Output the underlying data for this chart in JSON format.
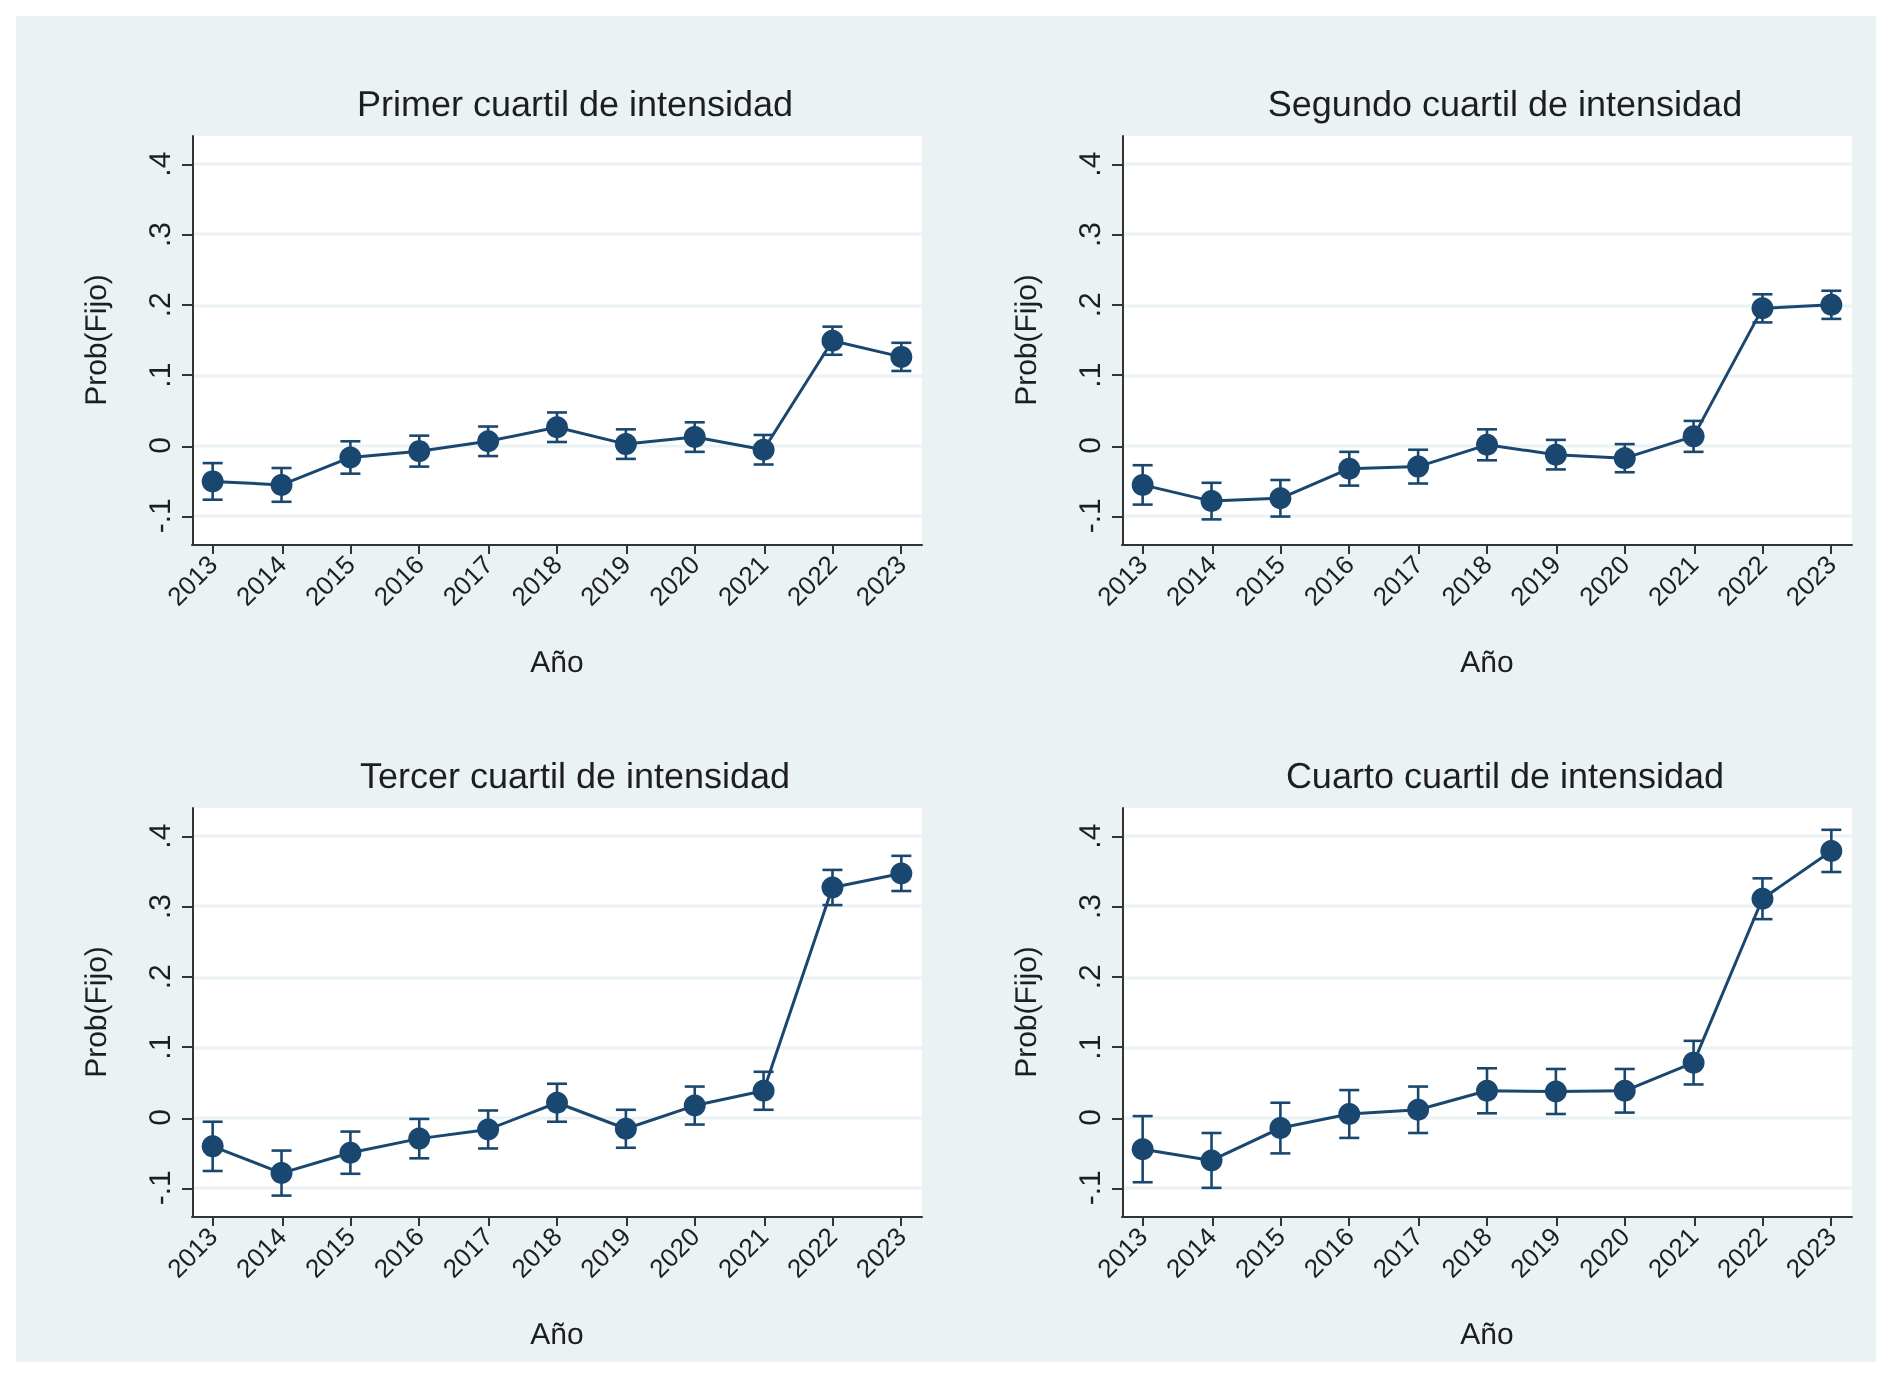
{
  "chart_data": [
    {
      "type": "line",
      "title": "Primer cuartil de intensidad",
      "xlabel": "Año",
      "ylabel": "Prob(Fijo)",
      "x": [
        2013,
        2014,
        2015,
        2016,
        2017,
        2018,
        2019,
        2020,
        2021,
        2022,
        2023
      ],
      "series": [
        {
          "color": "#1a476f",
          "values": [
            -0.051,
            -0.056,
            -0.017,
            -0.008,
            0.006,
            0.026,
            0.002,
            0.012,
            -0.006,
            0.149,
            0.126
          ],
          "errors": [
            0.026,
            0.024,
            0.023,
            0.022,
            0.021,
            0.021,
            0.021,
            0.021,
            0.021,
            0.02,
            0.02
          ]
        }
      ],
      "xlim": [
        2012.7,
        2023.3
      ],
      "xticks": [
        2013,
        2014,
        2015,
        2016,
        2017,
        2018,
        2019,
        2020,
        2021,
        2022,
        2023
      ],
      "ylim": [
        -0.14,
        0.44
      ],
      "yticks": [
        {
          "value": -0.1,
          "label": "-.1"
        },
        {
          "value": 0,
          "label": "0"
        },
        {
          "value": 0.1,
          "label": ".1"
        },
        {
          "value": 0.2,
          "label": ".2"
        },
        {
          "value": 0.3,
          "label": ".3"
        },
        {
          "value": 0.4,
          "label": ".4"
        }
      ],
      "grid": "y",
      "marker": "circle",
      "line_style": "solid"
    },
    {
      "type": "line",
      "title": "Segundo cuartil de intensidad",
      "xlabel": "Año",
      "ylabel": "Prob(Fijo)",
      "x": [
        2013,
        2014,
        2015,
        2016,
        2017,
        2018,
        2019,
        2020,
        2021,
        2022,
        2023
      ],
      "series": [
        {
          "color": "#1a476f",
          "values": [
            -0.056,
            -0.079,
            -0.075,
            -0.033,
            -0.03,
            0.001,
            -0.013,
            -0.018,
            0.013,
            0.195,
            0.2
          ],
          "errors": [
            0.028,
            0.026,
            0.026,
            0.024,
            0.024,
            0.022,
            0.021,
            0.02,
            0.022,
            0.02,
            0.02
          ]
        }
      ],
      "xlim": [
        2012.7,
        2023.3
      ],
      "xticks": [
        2013,
        2014,
        2015,
        2016,
        2017,
        2018,
        2019,
        2020,
        2021,
        2022,
        2023
      ],
      "ylim": [
        -0.14,
        0.44
      ],
      "yticks": [
        {
          "value": -0.1,
          "label": "-.1"
        },
        {
          "value": 0,
          "label": "0"
        },
        {
          "value": 0.1,
          "label": ".1"
        },
        {
          "value": 0.2,
          "label": ".2"
        },
        {
          "value": 0.3,
          "label": ".3"
        },
        {
          "value": 0.4,
          "label": ".4"
        }
      ],
      "grid": "y",
      "marker": "circle",
      "line_style": "solid"
    },
    {
      "type": "line",
      "title": "Tercer cuartil de intensidad",
      "xlabel": "Año",
      "ylabel": "Prob(Fijo)",
      "x": [
        2013,
        2014,
        2015,
        2016,
        2017,
        2018,
        2019,
        2020,
        2021,
        2022,
        2023
      ],
      "series": [
        {
          "color": "#1a476f",
          "values": [
            -0.041,
            -0.079,
            -0.05,
            -0.03,
            -0.017,
            0.021,
            -0.016,
            0.017,
            0.038,
            0.327,
            0.347
          ],
          "errors": [
            0.035,
            0.032,
            0.03,
            0.028,
            0.027,
            0.027,
            0.027,
            0.027,
            0.027,
            0.025,
            0.025
          ]
        }
      ],
      "xlim": [
        2012.7,
        2023.3
      ],
      "xticks": [
        2013,
        2014,
        2015,
        2016,
        2017,
        2018,
        2019,
        2020,
        2021,
        2022,
        2023
      ],
      "ylim": [
        -0.14,
        0.44
      ],
      "yticks": [
        {
          "value": -0.1,
          "label": "-.1"
        },
        {
          "value": 0,
          "label": "0"
        },
        {
          "value": 0.1,
          "label": ".1"
        },
        {
          "value": 0.2,
          "label": ".2"
        },
        {
          "value": 0.3,
          "label": ".3"
        },
        {
          "value": 0.4,
          "label": ".4"
        }
      ],
      "grid": "y",
      "marker": "circle",
      "line_style": "solid"
    },
    {
      "type": "line",
      "title": "Cuarto cuartil de intensidad",
      "xlabel": "Año",
      "ylabel": "Prob(Fijo)",
      "x": [
        2013,
        2014,
        2015,
        2016,
        2017,
        2018,
        2019,
        2020,
        2021,
        2022,
        2023
      ],
      "series": [
        {
          "color": "#1a476f",
          "values": [
            -0.045,
            -0.061,
            -0.015,
            0.005,
            0.011,
            0.038,
            0.037,
            0.038,
            0.078,
            0.311,
            0.379
          ],
          "errors": [
            0.047,
            0.039,
            0.036,
            0.034,
            0.033,
            0.032,
            0.032,
            0.031,
            0.031,
            0.029,
            0.03
          ]
        }
      ],
      "xlim": [
        2012.7,
        2023.3
      ],
      "xticks": [
        2013,
        2014,
        2015,
        2016,
        2017,
        2018,
        2019,
        2020,
        2021,
        2022,
        2023
      ],
      "ylim": [
        -0.14,
        0.44
      ],
      "yticks": [
        {
          "value": -0.1,
          "label": "-.1"
        },
        {
          "value": 0,
          "label": "0"
        },
        {
          "value": 0.1,
          "label": ".1"
        },
        {
          "value": 0.2,
          "label": ".2"
        },
        {
          "value": 0.3,
          "label": ".3"
        },
        {
          "value": 0.4,
          "label": ".4"
        }
      ],
      "grid": "y",
      "marker": "circle",
      "line_style": "solid"
    }
  ]
}
